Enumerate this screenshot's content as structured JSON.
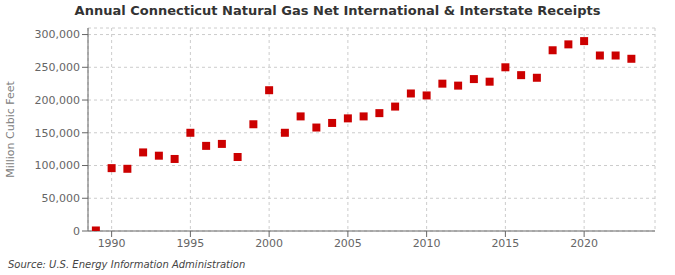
{
  "chart_data": {
    "type": "scatter",
    "title": "Annual Connecticut Natural Gas Net International & Interstate Receipts",
    "ylabel": "Million Cubic Feet",
    "annotation": "Source: U.S. Energy Information Administration",
    "x": [
      1989,
      1990,
      1991,
      1992,
      1993,
      1994,
      1995,
      1996,
      1997,
      1998,
      1999,
      2000,
      2001,
      2002,
      2003,
      2004,
      2005,
      2006,
      2007,
      2008,
      2009,
      2010,
      2011,
      2012,
      2013,
      2014,
      2015,
      2016,
      2017,
      2018,
      2019,
      2020,
      2021,
      2022,
      2023
    ],
    "values": [
      800,
      96000,
      95000,
      120000,
      115000,
      110000,
      150000,
      130000,
      133000,
      113000,
      163000,
      215000,
      150000,
      175000,
      158000,
      165000,
      172000,
      175000,
      180000,
      190000,
      210000,
      207000,
      225000,
      222000,
      232000,
      228000,
      250000,
      238000,
      234000,
      276000,
      285000,
      290000,
      268000,
      268000,
      263000
    ],
    "color": "#cc0000",
    "marker": "square",
    "xlim": [
      1988.5,
      2024.5
    ],
    "xticks": [
      1990,
      1995,
      2000,
      2005,
      2010,
      2015,
      2020
    ],
    "ylim": [
      0,
      310000
    ],
    "yticks": [
      0,
      {
        "value": 50000,
        "label": "50,000"
      },
      {
        "value": 100000,
        "label": "100,000"
      },
      {
        "value": 150000,
        "label": "150,000"
      },
      {
        "value": 200000,
        "label": "200,000"
      },
      {
        "value": 250000,
        "label": "250,000"
      },
      {
        "value": 300000,
        "label": "300,000"
      }
    ],
    "grid": true
  }
}
